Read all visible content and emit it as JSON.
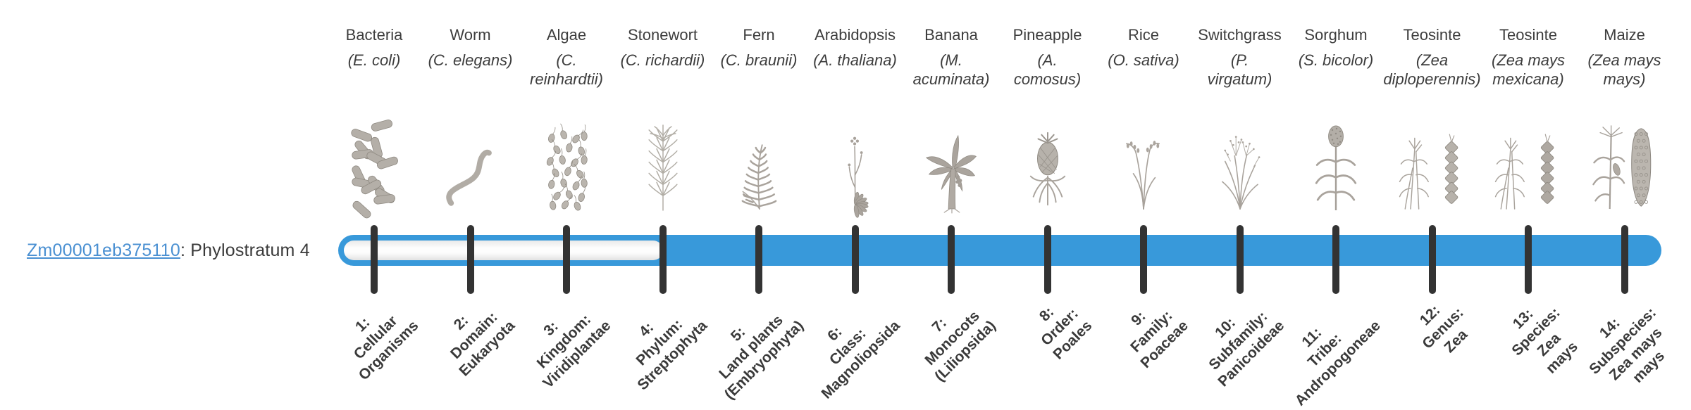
{
  "gene": {
    "id": "Zm00001eb375110",
    "suffix": ": Phylostratum 4",
    "phylostratum_label": "Phylostratum 4"
  },
  "colors": {
    "bar_fill": "#3899da",
    "bar_unfilled": "#fbfbfb",
    "tick": "#333333",
    "link_blue": "#4a90d2",
    "text_dark": "#3a3a3a",
    "icon_gray": "#aba59e"
  },
  "timeline": {
    "strata_count": 14,
    "filled_from_stratum": 4,
    "filled_to_stratum": 14
  },
  "organisms": [
    {
      "name": "Bacteria",
      "sci": "(E. coli)",
      "icon": "bacteria-icon",
      "stratum_label": "1:\nCellular\nOrganisms"
    },
    {
      "name": "Worm",
      "sci": "(C. elegans)",
      "icon": "worm-icon",
      "stratum_label": "2:\nDomain:\nEukaryota"
    },
    {
      "name": "Algae",
      "sci": "(C.\nreinhardtii)",
      "icon": "algae-icon",
      "stratum_label": "3:\nKingdom:\nViridiplantae"
    },
    {
      "name": "Stonewort",
      "sci": "(C. richardii)",
      "icon": "stonewort-icon",
      "stratum_label": "4:\nPhylum:\nStreptophyta"
    },
    {
      "name": "Fern",
      "sci": "(C. braunii)",
      "icon": "fern-icon",
      "stratum_label": "5:\nLand plants\n(Embryophyta)"
    },
    {
      "name": "Arabidopsis",
      "sci": "(A. thaliana)",
      "icon": "arabidopsis-icon",
      "stratum_label": "6:\nClass:\nMagnoliopsida"
    },
    {
      "name": "Banana",
      "sci": "(M.\nacuminata)",
      "icon": "banana-icon",
      "stratum_label": "7:\nMonocots\n(Liliopsida)"
    },
    {
      "name": "Pineapple",
      "sci": "(A.\ncomosus)",
      "icon": "pineapple-icon",
      "stratum_label": "8:\nOrder:\nPoales"
    },
    {
      "name": "Rice",
      "sci": "(O. sativa)",
      "icon": "rice-icon",
      "stratum_label": "9:\nFamily:\nPoaceae"
    },
    {
      "name": "Switchgrass",
      "sci": "(P.\nvirgatum)",
      "icon": "switchgrass-icon",
      "stratum_label": "10:\nSubfamily:\nPanicoideae"
    },
    {
      "name": "Sorghum",
      "sci": "(S. bicolor)",
      "icon": "sorghum-icon",
      "stratum_label": "11:\nTribe:\nAndropogoneae"
    },
    {
      "name": "Teosinte",
      "sci": "(Zea\ndiploperennis)",
      "icon": "teosinte-diploperennis-icon",
      "stratum_label": "12:\nGenus:\nZea"
    },
    {
      "name": "Teosinte",
      "sci": "(Zea mays\nmexicana)",
      "icon": "teosinte-mexicana-icon",
      "stratum_label": "13:\nSpecies:\nZea\nmays"
    },
    {
      "name": "Maize",
      "sci": "(Zea mays\nmays)",
      "icon": "maize-icon",
      "stratum_label": "14:\nSubspecies:\nZea mays\nmays"
    }
  ]
}
